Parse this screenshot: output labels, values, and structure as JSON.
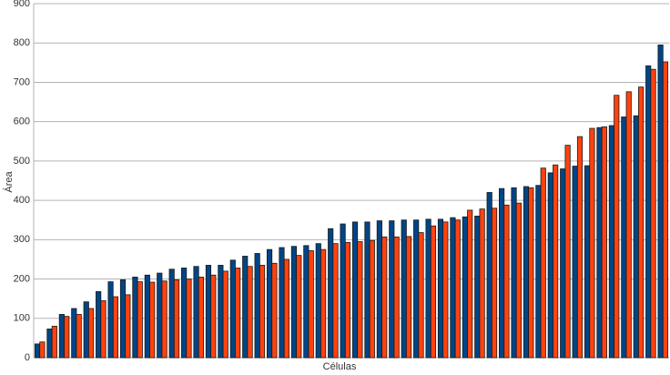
{
  "chart_data": {
    "type": "bar",
    "x_label": "Células",
    "y_label": "Área",
    "categories": [
      null,
      null,
      null,
      null,
      null,
      null,
      null,
      null,
      null,
      null,
      null,
      null,
      null,
      null,
      null,
      null,
      null,
      null,
      null,
      null,
      null,
      null,
      null,
      null,
      null,
      null,
      null,
      null,
      null,
      null,
      null,
      null,
      null,
      null,
      null,
      null,
      null,
      null,
      null,
      null,
      null,
      null,
      null,
      null,
      null,
      null,
      null,
      null,
      null,
      null,
      null,
      null
    ],
    "series": [
      {
        "color": "#004586",
        "values": [
          35,
          73,
          110,
          125,
          142,
          168,
          193,
          198,
          205,
          210,
          215,
          225,
          228,
          232,
          235,
          235,
          248,
          258,
          265,
          275,
          280,
          283,
          285,
          290,
          328,
          340,
          345,
          345,
          348,
          348,
          350,
          350,
          352,
          352,
          356,
          358,
          360,
          420,
          430,
          432,
          435,
          438,
          470,
          480,
          487,
          488,
          585,
          590,
          612,
          615,
          742,
          795
        ]
      },
      {
        "color": "#ff420e",
        "values": [
          40,
          80,
          105,
          110,
          125,
          145,
          155,
          160,
          193,
          192,
          195,
          198,
          200,
          205,
          210,
          220,
          228,
          232,
          235,
          240,
          250,
          260,
          272,
          275,
          290,
          293,
          295,
          298,
          307,
          307,
          308,
          318,
          335,
          345,
          350,
          375,
          378,
          380,
          388,
          393,
          432,
          482,
          490,
          540,
          562,
          583,
          587,
          667,
          676,
          688,
          733,
          752
        ]
      }
    ],
    "ylim": [
      0,
      900
    ],
    "yticks": [
      0,
      100,
      200,
      300,
      400,
      500,
      600,
      700,
      800,
      900
    ],
    "grid": true
  }
}
